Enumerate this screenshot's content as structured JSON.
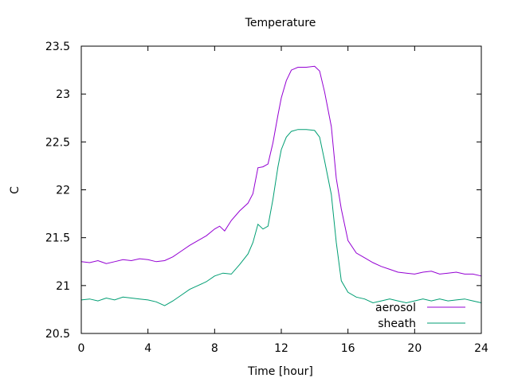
{
  "chart_data": {
    "type": "line",
    "title": "Temperature",
    "xlabel": "Time [hour]",
    "ylabel": "C",
    "xlim": [
      0,
      24
    ],
    "ylim": [
      20.5,
      23.5
    ],
    "xticks": [
      0,
      4,
      8,
      12,
      16,
      20,
      24
    ],
    "yticks": [
      20.5,
      21,
      21.5,
      22,
      22.5,
      23,
      23.5
    ],
    "ytick_labels": [
      "20.5",
      "21",
      "21.5",
      "22",
      "22.5",
      "23",
      "23.5"
    ],
    "grid": false,
    "legend_position": "bottom-right",
    "series": [
      {
        "name": "aerosol",
        "color": "#9400d3",
        "x": [
          0,
          0.5,
          1,
          1.5,
          2,
          2.5,
          3,
          3.5,
          4,
          4.5,
          5,
          5.5,
          6,
          6.5,
          7,
          7.5,
          8,
          8.3,
          8.6,
          9,
          9.5,
          10,
          10.3,
          10.6,
          10.9,
          11.2,
          11.5,
          11.8,
          12,
          12.3,
          12.6,
          13,
          13.5,
          14,
          14.3,
          14.6,
          15,
          15.3,
          15.6,
          16,
          16.5,
          17,
          17.5,
          18,
          18.5,
          19,
          19.5,
          20,
          20.5,
          21,
          21.5,
          22,
          22.5,
          23,
          23.5,
          24
        ],
        "y": [
          21.25,
          21.24,
          21.26,
          21.23,
          21.25,
          21.27,
          21.26,
          21.28,
          21.27,
          21.25,
          21.26,
          21.3,
          21.36,
          21.42,
          21.47,
          21.52,
          21.59,
          21.62,
          21.57,
          21.68,
          21.78,
          21.86,
          21.96,
          22.23,
          22.24,
          22.27,
          22.49,
          22.78,
          22.96,
          23.14,
          23.25,
          23.28,
          23.28,
          23.29,
          23.24,
          23.02,
          22.66,
          22.12,
          21.8,
          21.47,
          21.34,
          21.29,
          21.24,
          21.2,
          21.17,
          21.14,
          21.13,
          21.12,
          21.14,
          21.15,
          21.12,
          21.13,
          21.14,
          21.12,
          21.12,
          21.1
        ]
      },
      {
        "name": "sheath",
        "color": "#009e73",
        "x": [
          0,
          0.5,
          1,
          1.5,
          2,
          2.5,
          3,
          3.5,
          4,
          4.5,
          5,
          5.5,
          6,
          6.5,
          7,
          7.5,
          8,
          8.5,
          9,
          9.5,
          10,
          10.3,
          10.6,
          10.9,
          11.2,
          11.5,
          11.8,
          12,
          12.3,
          12.6,
          13,
          13.5,
          14,
          14.3,
          14.6,
          15,
          15.3,
          15.6,
          16,
          16.5,
          17,
          17.5,
          18,
          18.5,
          19,
          19.5,
          20,
          20.5,
          21,
          21.5,
          22,
          22.5,
          23,
          23.5,
          24
        ],
        "y": [
          20.85,
          20.86,
          20.84,
          20.87,
          20.85,
          20.88,
          20.87,
          20.86,
          20.85,
          20.83,
          20.79,
          20.84,
          20.9,
          20.96,
          21.0,
          21.04,
          21.1,
          21.13,
          21.12,
          21.22,
          21.33,
          21.45,
          21.64,
          21.59,
          21.62,
          21.9,
          22.24,
          22.42,
          22.55,
          22.61,
          22.63,
          22.63,
          22.62,
          22.55,
          22.3,
          21.95,
          21.45,
          21.05,
          20.93,
          20.88,
          20.86,
          20.82,
          20.84,
          20.86,
          20.84,
          20.82,
          20.84,
          20.86,
          20.84,
          20.86,
          20.84,
          20.85,
          20.86,
          20.84,
          20.82
        ]
      }
    ]
  }
}
